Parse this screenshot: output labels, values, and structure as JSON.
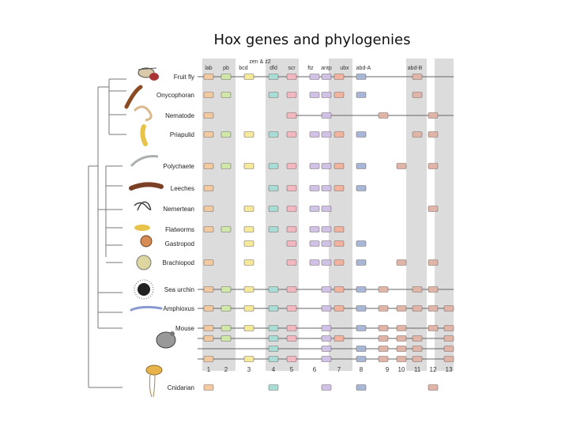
{
  "title": "Hox genes and phylogenies",
  "gene_headers": [
    "lab",
    "pb",
    "bcd",
    "zen & z2",
    "dfd",
    "scr",
    "ftz",
    "antp",
    "ubx",
    "abd-A",
    "abd-B"
  ],
  "paralog_numbers": [
    "1",
    "2",
    "3",
    "4",
    "5",
    "6",
    "7",
    "8",
    "9",
    "10",
    "11",
    "12",
    "13"
  ],
  "taxa": [
    "Fruit fly",
    "Onycophoran",
    "Nematode",
    "Priapulid",
    "Polychaete",
    "Leeches",
    "Nemertean",
    "Flatworms",
    "Gastropod",
    "Brachiopod",
    "Sea urchin",
    "Amphioxus",
    "Mouse",
    "Cnidarian"
  ],
  "colors": {
    "lab": "#f3c9a0",
    "pb": "#cfe8a8",
    "hox3": "#f4ea9a",
    "dfd": "#a8ddd6",
    "scr": "#f2b7bf",
    "central": "#cfc2e6",
    "ubx": "#f2b39e",
    "abd": "#a9b7d6",
    "post": "#e0b4a6",
    "band": "#dcdcdc"
  }
}
